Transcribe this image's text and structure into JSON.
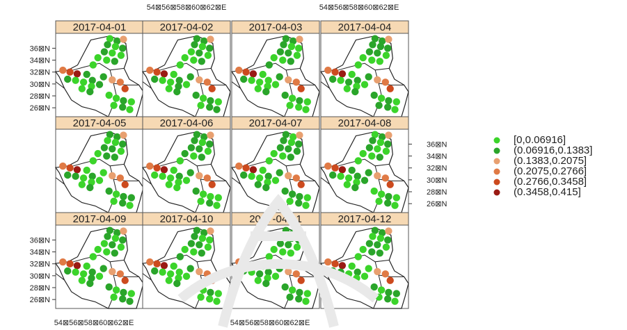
{
  "chart_data": {
    "type": "scatter",
    "title": "",
    "panels": [
      {
        "label": "2017-04-01"
      },
      {
        "label": "2017-04-02"
      },
      {
        "label": "2017-04-03"
      },
      {
        "label": "2017-04-04"
      },
      {
        "label": "2017-04-05"
      },
      {
        "label": "2017-04-06"
      },
      {
        "label": "2017-04-07"
      },
      {
        "label": "2017-04-08"
      },
      {
        "label": "2017-04-09"
      },
      {
        "label": "2017-04-10"
      },
      {
        "label": "2017-04-11"
      },
      {
        "label": "2017-04-12"
      }
    ],
    "x_tick_labels": [
      "54⊠56⊠58⊠60⊠62⊠E",
      "54⊠56⊠58⊠60⊠62⊠E"
    ],
    "y_tick_labels": [
      "36⊠N",
      "34⊠N",
      "32⊠N",
      "30⊠N",
      "28⊠N",
      "26⊠N"
    ],
    "y_ticks_values": [
      36,
      34,
      32,
      30,
      28,
      26
    ],
    "x_range": [
      52.5,
      63.5
    ],
    "y_range": [
      24.5,
      38.5
    ],
    "legend": {
      "position": "right",
      "entries": [
        {
          "label": "[0,0.06916]",
          "color": "#3bd42a"
        },
        {
          "label": "(0.06916,0.1383]",
          "color": "#2aa52a"
        },
        {
          "label": "(0.1383,0.2075]",
          "color": "#e8a070"
        },
        {
          "label": "(0.2075,0.2766]",
          "color": "#e07a45"
        },
        {
          "label": "(0.2766,0.3458]",
          "color": "#cc4a1e"
        },
        {
          "label": "(0.3458,0.415]",
          "color": "#9a1a14"
        }
      ]
    },
    "strip_color": "#f6d9b4",
    "stations": [
      {
        "lon": 59.3,
        "lat": 37.6,
        "c": 1
      },
      {
        "lon": 60.2,
        "lat": 37.2,
        "c": 1
      },
      {
        "lon": 61.0,
        "lat": 37.5,
        "c": 2
      },
      {
        "lon": 59.0,
        "lat": 36.6,
        "c": 1
      },
      {
        "lon": 60.0,
        "lat": 36.3,
        "c": 0
      },
      {
        "lon": 60.9,
        "lat": 36.0,
        "c": 1
      },
      {
        "lon": 58.6,
        "lat": 35.4,
        "c": 1
      },
      {
        "lon": 59.6,
        "lat": 35.2,
        "c": 1
      },
      {
        "lon": 60.7,
        "lat": 34.8,
        "c": 0
      },
      {
        "lon": 57.8,
        "lat": 34.4,
        "c": 0
      },
      {
        "lon": 58.9,
        "lat": 34.0,
        "c": 0
      },
      {
        "lon": 59.9,
        "lat": 33.8,
        "c": 1
      },
      {
        "lon": 57.2,
        "lat": 33.2,
        "c": 0
      },
      {
        "lon": 53.4,
        "lat": 32.3,
        "c": 3
      },
      {
        "lon": 54.3,
        "lat": 32.0,
        "c": 4
      },
      {
        "lon": 55.2,
        "lat": 31.7,
        "c": 5
      },
      {
        "lon": 54.0,
        "lat": 30.8,
        "c": 1
      },
      {
        "lon": 55.0,
        "lat": 30.6,
        "c": 0
      },
      {
        "lon": 56.0,
        "lat": 30.3,
        "c": 0
      },
      {
        "lon": 57.1,
        "lat": 30.6,
        "c": 1
      },
      {
        "lon": 57.0,
        "lat": 29.6,
        "c": 0
      },
      {
        "lon": 58.0,
        "lat": 29.9,
        "c": 0
      },
      {
        "lon": 55.8,
        "lat": 29.2,
        "c": 0
      },
      {
        "lon": 56.8,
        "lat": 28.7,
        "c": 1
      },
      {
        "lon": 58.5,
        "lat": 31.2,
        "c": 1
      },
      {
        "lon": 59.6,
        "lat": 30.7,
        "c": 2
      },
      {
        "lon": 60.6,
        "lat": 30.3,
        "c": 3
      },
      {
        "lon": 61.2,
        "lat": 29.2,
        "c": 4
      },
      {
        "lon": 59.2,
        "lat": 28.1,
        "c": 1
      },
      {
        "lon": 60.1,
        "lat": 27.6,
        "c": 0
      },
      {
        "lon": 61.0,
        "lat": 27.2,
        "c": 1
      },
      {
        "lon": 62.0,
        "lat": 27.0,
        "c": 0
      },
      {
        "lon": 59.8,
        "lat": 26.4,
        "c": 0
      },
      {
        "lon": 60.9,
        "lat": 26.1,
        "c": 1
      },
      {
        "lon": 61.8,
        "lat": 25.7,
        "c": 0
      },
      {
        "lon": 56.4,
        "lat": 31.6,
        "c": 0
      }
    ]
  }
}
